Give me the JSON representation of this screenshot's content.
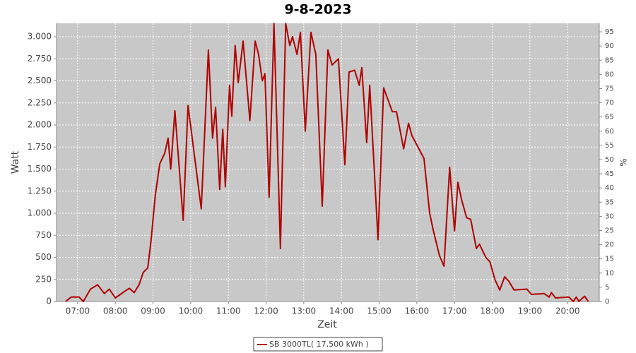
{
  "chart_data": {
    "type": "line",
    "title": "9-8-2023",
    "x_label": "Zeit",
    "y_label": "Watt",
    "y2_label": "%",
    "x": [
      6.68,
      6.83,
      7.04,
      7.15,
      7.34,
      7.53,
      7.71,
      7.84,
      8.0,
      8.2,
      8.37,
      8.5,
      8.63,
      8.74,
      8.86,
      8.95,
      9.06,
      9.18,
      9.31,
      9.4,
      9.47,
      9.58,
      9.8,
      9.93,
      10.28,
      10.47,
      10.58,
      10.66,
      10.77,
      10.85,
      10.92,
      11.03,
      11.09,
      11.18,
      11.26,
      11.39,
      11.57,
      11.71,
      11.8,
      11.9,
      11.97,
      12.08,
      12.21,
      12.38,
      12.52,
      12.63,
      12.7,
      12.82,
      12.91,
      13.04,
      13.19,
      13.32,
      13.49,
      13.64,
      13.75,
      13.92,
      14.09,
      14.2,
      14.35,
      14.47,
      14.54,
      14.67,
      14.75,
      14.97,
      15.12,
      15.35,
      15.46,
      15.65,
      15.78,
      15.87,
      16.19,
      16.34,
      16.44,
      16.6,
      16.72,
      16.87,
      17.0,
      17.09,
      17.19,
      17.32,
      17.43,
      17.58,
      17.66,
      17.83,
      17.94,
      18.07,
      18.2,
      18.33,
      18.44,
      18.58,
      18.92,
      19.04,
      19.38,
      19.51,
      19.57,
      19.68,
      20.04,
      20.15,
      20.23,
      20.3,
      20.45,
      20.55
    ],
    "series": [
      {
        "name": "SB 3000TL( 17,500 kWh )",
        "color": "#b00000",
        "values": [
          0,
          50,
          50,
          0,
          140,
          190,
          90,
          140,
          40,
          100,
          150,
          100,
          190,
          330,
          380,
          700,
          1200,
          1560,
          1680,
          1850,
          1500,
          2160,
          920,
          2220,
          1050,
          2850,
          1850,
          2200,
          1270,
          1950,
          1300,
          2450,
          2100,
          2900,
          2480,
          2950,
          2050,
          2950,
          2800,
          2500,
          2580,
          1180,
          3150,
          600,
          3150,
          2900,
          3000,
          2800,
          3050,
          1930,
          3050,
          2800,
          1080,
          2850,
          2680,
          2750,
          1550,
          2600,
          2620,
          2450,
          2650,
          1800,
          2450,
          700,
          2420,
          2150,
          2150,
          1730,
          2020,
          1880,
          1620,
          1000,
          800,
          520,
          400,
          1520,
          800,
          1350,
          1150,
          950,
          930,
          600,
          650,
          500,
          450,
          250,
          130,
          280,
          230,
          130,
          140,
          80,
          90,
          50,
          100,
          40,
          50,
          0,
          50,
          0,
          60,
          0
        ]
      }
    ],
    "xlim": [
      6.44,
      20.84
    ],
    "xticks": [
      {
        "value": 7,
        "label": "07:00"
      },
      {
        "value": 8,
        "label": "08:00"
      },
      {
        "value": 9,
        "label": "09:00"
      },
      {
        "value": 10,
        "label": "10:00"
      },
      {
        "value": 11,
        "label": "11:00"
      },
      {
        "value": 12,
        "label": "12:00"
      },
      {
        "value": 13,
        "label": "13:00"
      },
      {
        "value": 14,
        "label": "14:00"
      },
      {
        "value": 15,
        "label": "15:00"
      },
      {
        "value": 16,
        "label": "16:00"
      },
      {
        "value": 17,
        "label": "17:00"
      },
      {
        "value": 18,
        "label": "18:00"
      },
      {
        "value": 19,
        "label": "19:00"
      },
      {
        "value": 20,
        "label": "20:00"
      }
    ],
    "ylim": [
      0,
      3152
    ],
    "yticks": [
      0,
      250,
      500,
      750,
      {
        "value": 1000,
        "label": "1.000"
      },
      {
        "value": 1250,
        "label": "1.250"
      },
      {
        "value": 1500,
        "label": "1.500"
      },
      {
        "value": 1750,
        "label": "1.750"
      },
      {
        "value": 2000,
        "label": "2.000"
      },
      {
        "value": 2250,
        "label": "2.250"
      },
      {
        "value": 2500,
        "label": "2.500"
      },
      {
        "value": 2750,
        "label": "2.750"
      },
      {
        "value": 3000,
        "label": "3.000"
      }
    ],
    "y2lim": [
      0,
      98
    ],
    "y2ticks": [
      0,
      5,
      10,
      15,
      20,
      25,
      30,
      35,
      40,
      45,
      50,
      55,
      60,
      65,
      70,
      75,
      80,
      85,
      90,
      95
    ],
    "grid": true
  }
}
